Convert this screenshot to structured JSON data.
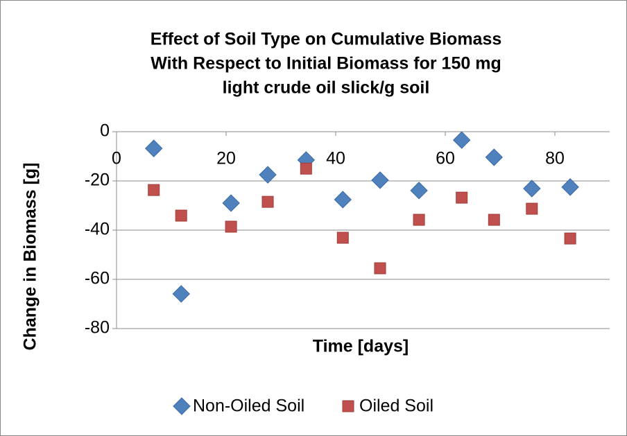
{
  "chart_data": {
    "type": "scatter",
    "title": [
      "Effect of Soil Type on Cumulative Biomass",
      "With Respect to Initial Biomass for 150 mg",
      "light crude oil slick/g soil"
    ],
    "x_label": "Time [days]",
    "y_label": "Change in Biomass [g]",
    "xlim": [
      0,
      90
    ],
    "xticks": [
      0,
      20,
      40,
      60,
      80
    ],
    "ylim": [
      -80,
      0
    ],
    "yticks": [
      0,
      -20,
      -40,
      -60,
      -80
    ],
    "grid": true,
    "legend": "bottom",
    "series": [
      {
        "name": "Non-Oiled Soil",
        "color": "#4f81bd",
        "marker": "diamond",
        "x": [
          6.8,
          11.8,
          20.9,
          27.6,
          34.6,
          41.3,
          48.1,
          55.2,
          63,
          68.9,
          75.8,
          82.8
        ],
        "values": [
          -6.8,
          -65.9,
          -29,
          -17.5,
          -11.5,
          -27.6,
          -19.7,
          -23.9,
          -3.4,
          -10.4,
          -23.1,
          -22.5
        ]
      },
      {
        "name": "Oiled Soil",
        "color": "#c0504d",
        "marker": "square",
        "x": [
          6.8,
          11.8,
          20.9,
          27.6,
          34.6,
          41.3,
          48.1,
          55.2,
          63,
          68.9,
          75.8,
          82.8
        ],
        "values": [
          -23.7,
          -34.1,
          -38.6,
          -28.5,
          -15,
          -43.1,
          -55.5,
          -35.8,
          -26.8,
          -35.8,
          -31.3,
          -43.4
        ]
      }
    ]
  }
}
